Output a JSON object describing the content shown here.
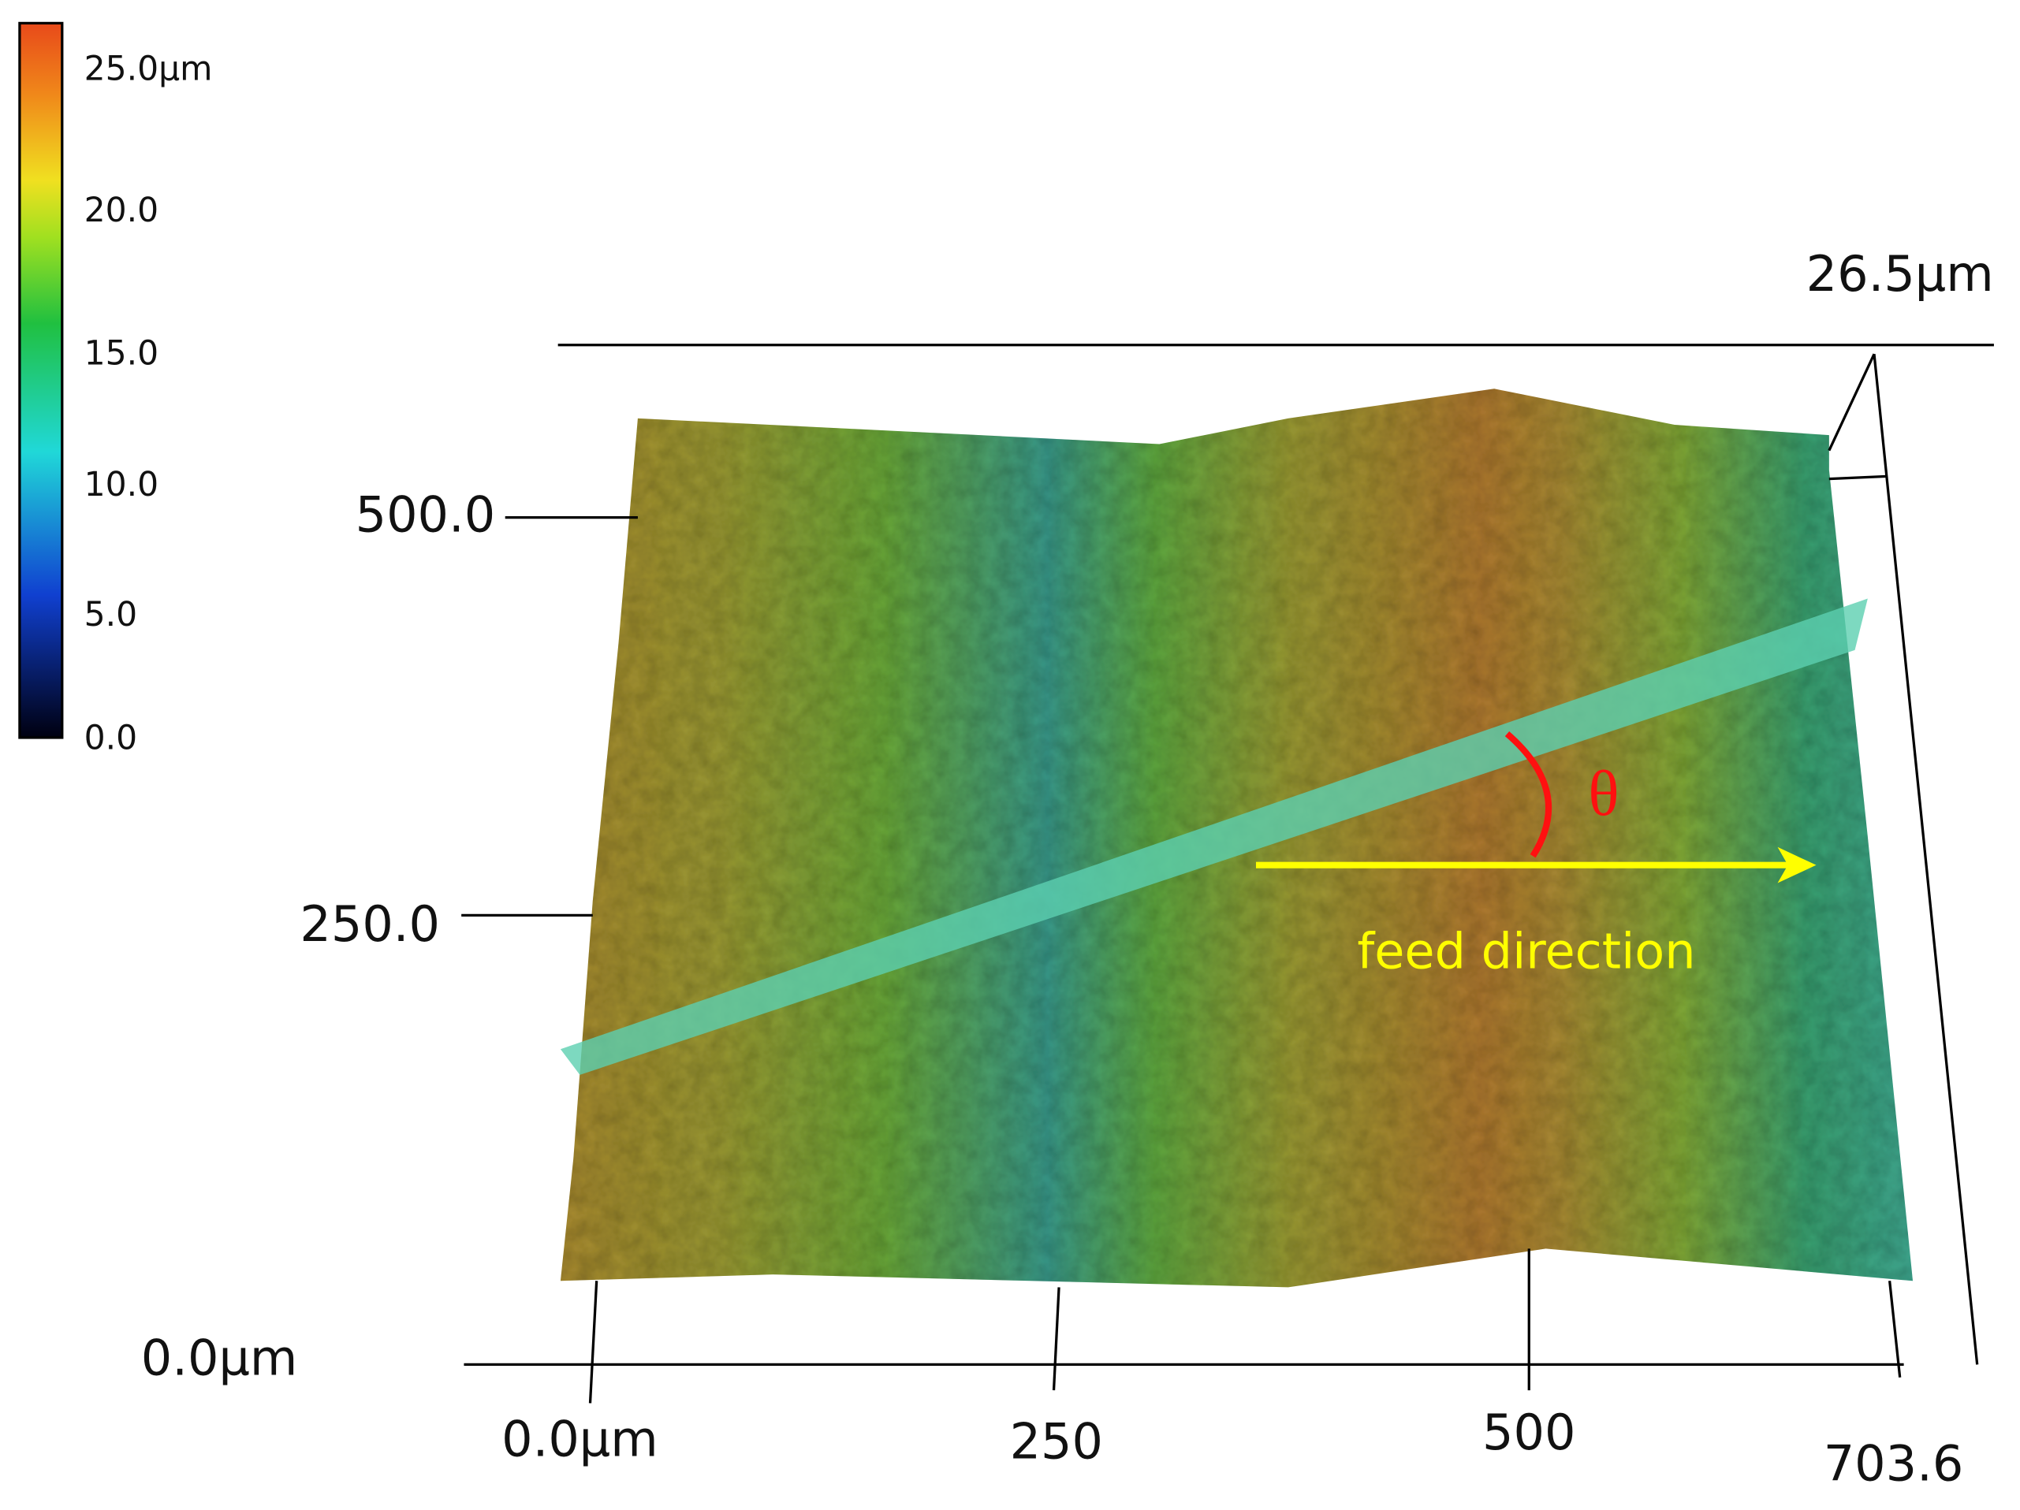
{
  "colorbar": {
    "labels": [
      "25.0µm",
      "20.0",
      "15.0",
      "10.0",
      "5.0",
      "0.0"
    ]
  },
  "z_axis": {
    "labels": [
      "26.5µm",
      "0.0µm"
    ]
  },
  "y_axis": {
    "labels": [
      "500.0",
      "250.0"
    ]
  },
  "x_axis": {
    "labels": [
      "0.0µm",
      "250",
      "500",
      "703.6"
    ]
  },
  "annotations": {
    "angle": "θ",
    "arrow": "feed direction"
  }
}
